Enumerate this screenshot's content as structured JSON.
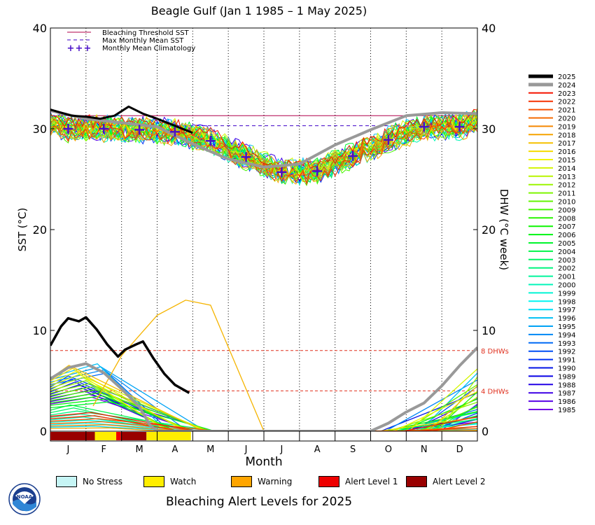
{
  "header": {
    "title": "Beagle Gulf      (Jan 1 1985 – 1 May 2025)"
  },
  "footer": {
    "title": "Bleaching Alert Levels for 2025"
  },
  "logo": {
    "icon": "noaa-logo-icon",
    "text": "NOAA"
  },
  "colors": {
    "threshold": "#b0004a",
    "mmm": "#3d00c8",
    "climatology": "#4a10c8",
    "year2025": "#000000",
    "year2024": "#999999",
    "dhw_ref": "#e0301e",
    "no_stress": "#c6f5f5",
    "watch": "#ffee00",
    "warning": "#ffa500",
    "alert1": "#ee0000",
    "alert2": "#990000"
  },
  "chart_data": {
    "type": "line",
    "title": "Beagle Gulf      (Jan 1 1985 – 1 May 2025)",
    "xlabel": "Month",
    "ylabel_left": "SST (°C)",
    "ylabel_right": "DHW (°C week)",
    "ylim": [
      0,
      40
    ],
    "yticks": [
      "0",
      "10",
      "20",
      "30",
      "40"
    ],
    "months": [
      "J",
      "F",
      "M",
      "A",
      "M",
      "J",
      "J",
      "A",
      "S",
      "O",
      "N",
      "D"
    ],
    "legend_top": [
      "Bleaching Threshold SST",
      "Max Monthly Mean SST",
      "Monthly Mean Climatology"
    ],
    "bleaching_threshold_sst": 31.3,
    "max_monthly_mean_sst": 30.3,
    "monthly_mean_climatology": [
      30.0,
      30.0,
      29.9,
      29.7,
      28.8,
      27.2,
      25.7,
      25.8,
      27.3,
      28.9,
      30.2,
      30.2
    ],
    "dhw_reference_lines": [
      {
        "value": 8,
        "label": "8 DHWs"
      },
      {
        "value": 4,
        "label": "4 DHWs"
      }
    ],
    "years": [
      "2025",
      "2024",
      "2023",
      "2022",
      "2021",
      "2020",
      "2019",
      "2018",
      "2017",
      "2016",
      "2015",
      "2014",
      "2013",
      "2012",
      "2011",
      "2010",
      "2009",
      "2008",
      "2007",
      "2006",
      "2005",
      "2004",
      "2003",
      "2002",
      "2001",
      "2000",
      "1999",
      "1998",
      "1997",
      "1996",
      "1995",
      "1994",
      "1993",
      "1992",
      "1991",
      "1990",
      "1989",
      "1988",
      "1987",
      "1986",
      "1985"
    ],
    "series_2025": {
      "name": "2025",
      "sst_x_month": [
        0.0,
        0.3,
        0.6,
        1.0,
        1.4,
        1.8,
        2.2,
        2.6,
        3.0,
        3.5,
        4.0
      ],
      "sst_values": [
        31.9,
        31.6,
        31.3,
        31.2,
        31.0,
        31.3,
        32.2,
        31.5,
        31.0,
        30.3,
        29.6
      ],
      "dhw_x_month": [
        0.0,
        0.3,
        0.5,
        0.8,
        1.0,
        1.3,
        1.6,
        1.9,
        2.1,
        2.4,
        2.6,
        2.9,
        3.2,
        3.5,
        3.9
      ],
      "dhw_values": [
        8.5,
        10.4,
        11.2,
        10.9,
        11.3,
        10.1,
        8.6,
        7.4,
        8.1,
        8.6,
        8.9,
        7.2,
        5.7,
        4.6,
        3.8
      ]
    },
    "series_2024": {
      "name": "2024",
      "sst_x_month": [
        0.0,
        1.0,
        2.0,
        3.0,
        4.0,
        5.0,
        6.0,
        7.0,
        8.0,
        9.0,
        10.0,
        11.0,
        12.0
      ],
      "sst_values": [
        31.8,
        31.0,
        30.6,
        30.2,
        28.5,
        27.0,
        26.2,
        26.5,
        28.4,
        29.9,
        31.3,
        31.6,
        31.5
      ],
      "dhw_x_month": [
        0.0,
        0.5,
        1.0,
        1.5,
        2.0,
        2.5,
        2.8,
        3.0,
        9.0,
        9.5,
        10.0,
        10.5,
        11.0,
        11.5,
        12.0
      ],
      "dhw_values": [
        5.2,
        6.3,
        6.7,
        5.8,
        4.2,
        2.4,
        0.6,
        0.0,
        0.0,
        0.8,
        1.9,
        2.8,
        4.5,
        6.5,
        8.3
      ]
    },
    "alert_levels": [
      "No Stress",
      "Watch",
      "Warning",
      "Alert Level 1",
      "Alert Level 2"
    ],
    "alert_bar_2025": [
      {
        "from_month": 0.0,
        "to_month": 1.25,
        "level": "Alert Level 2"
      },
      {
        "from_month": 1.25,
        "to_month": 1.85,
        "level": "Watch"
      },
      {
        "from_month": 1.85,
        "to_month": 1.98,
        "level": "Alert Level 1"
      },
      {
        "from_month": 1.98,
        "to_month": 2.7,
        "level": "Alert Level 2"
      },
      {
        "from_month": 2.7,
        "to_month": 3.95,
        "level": "Watch"
      }
    ]
  }
}
